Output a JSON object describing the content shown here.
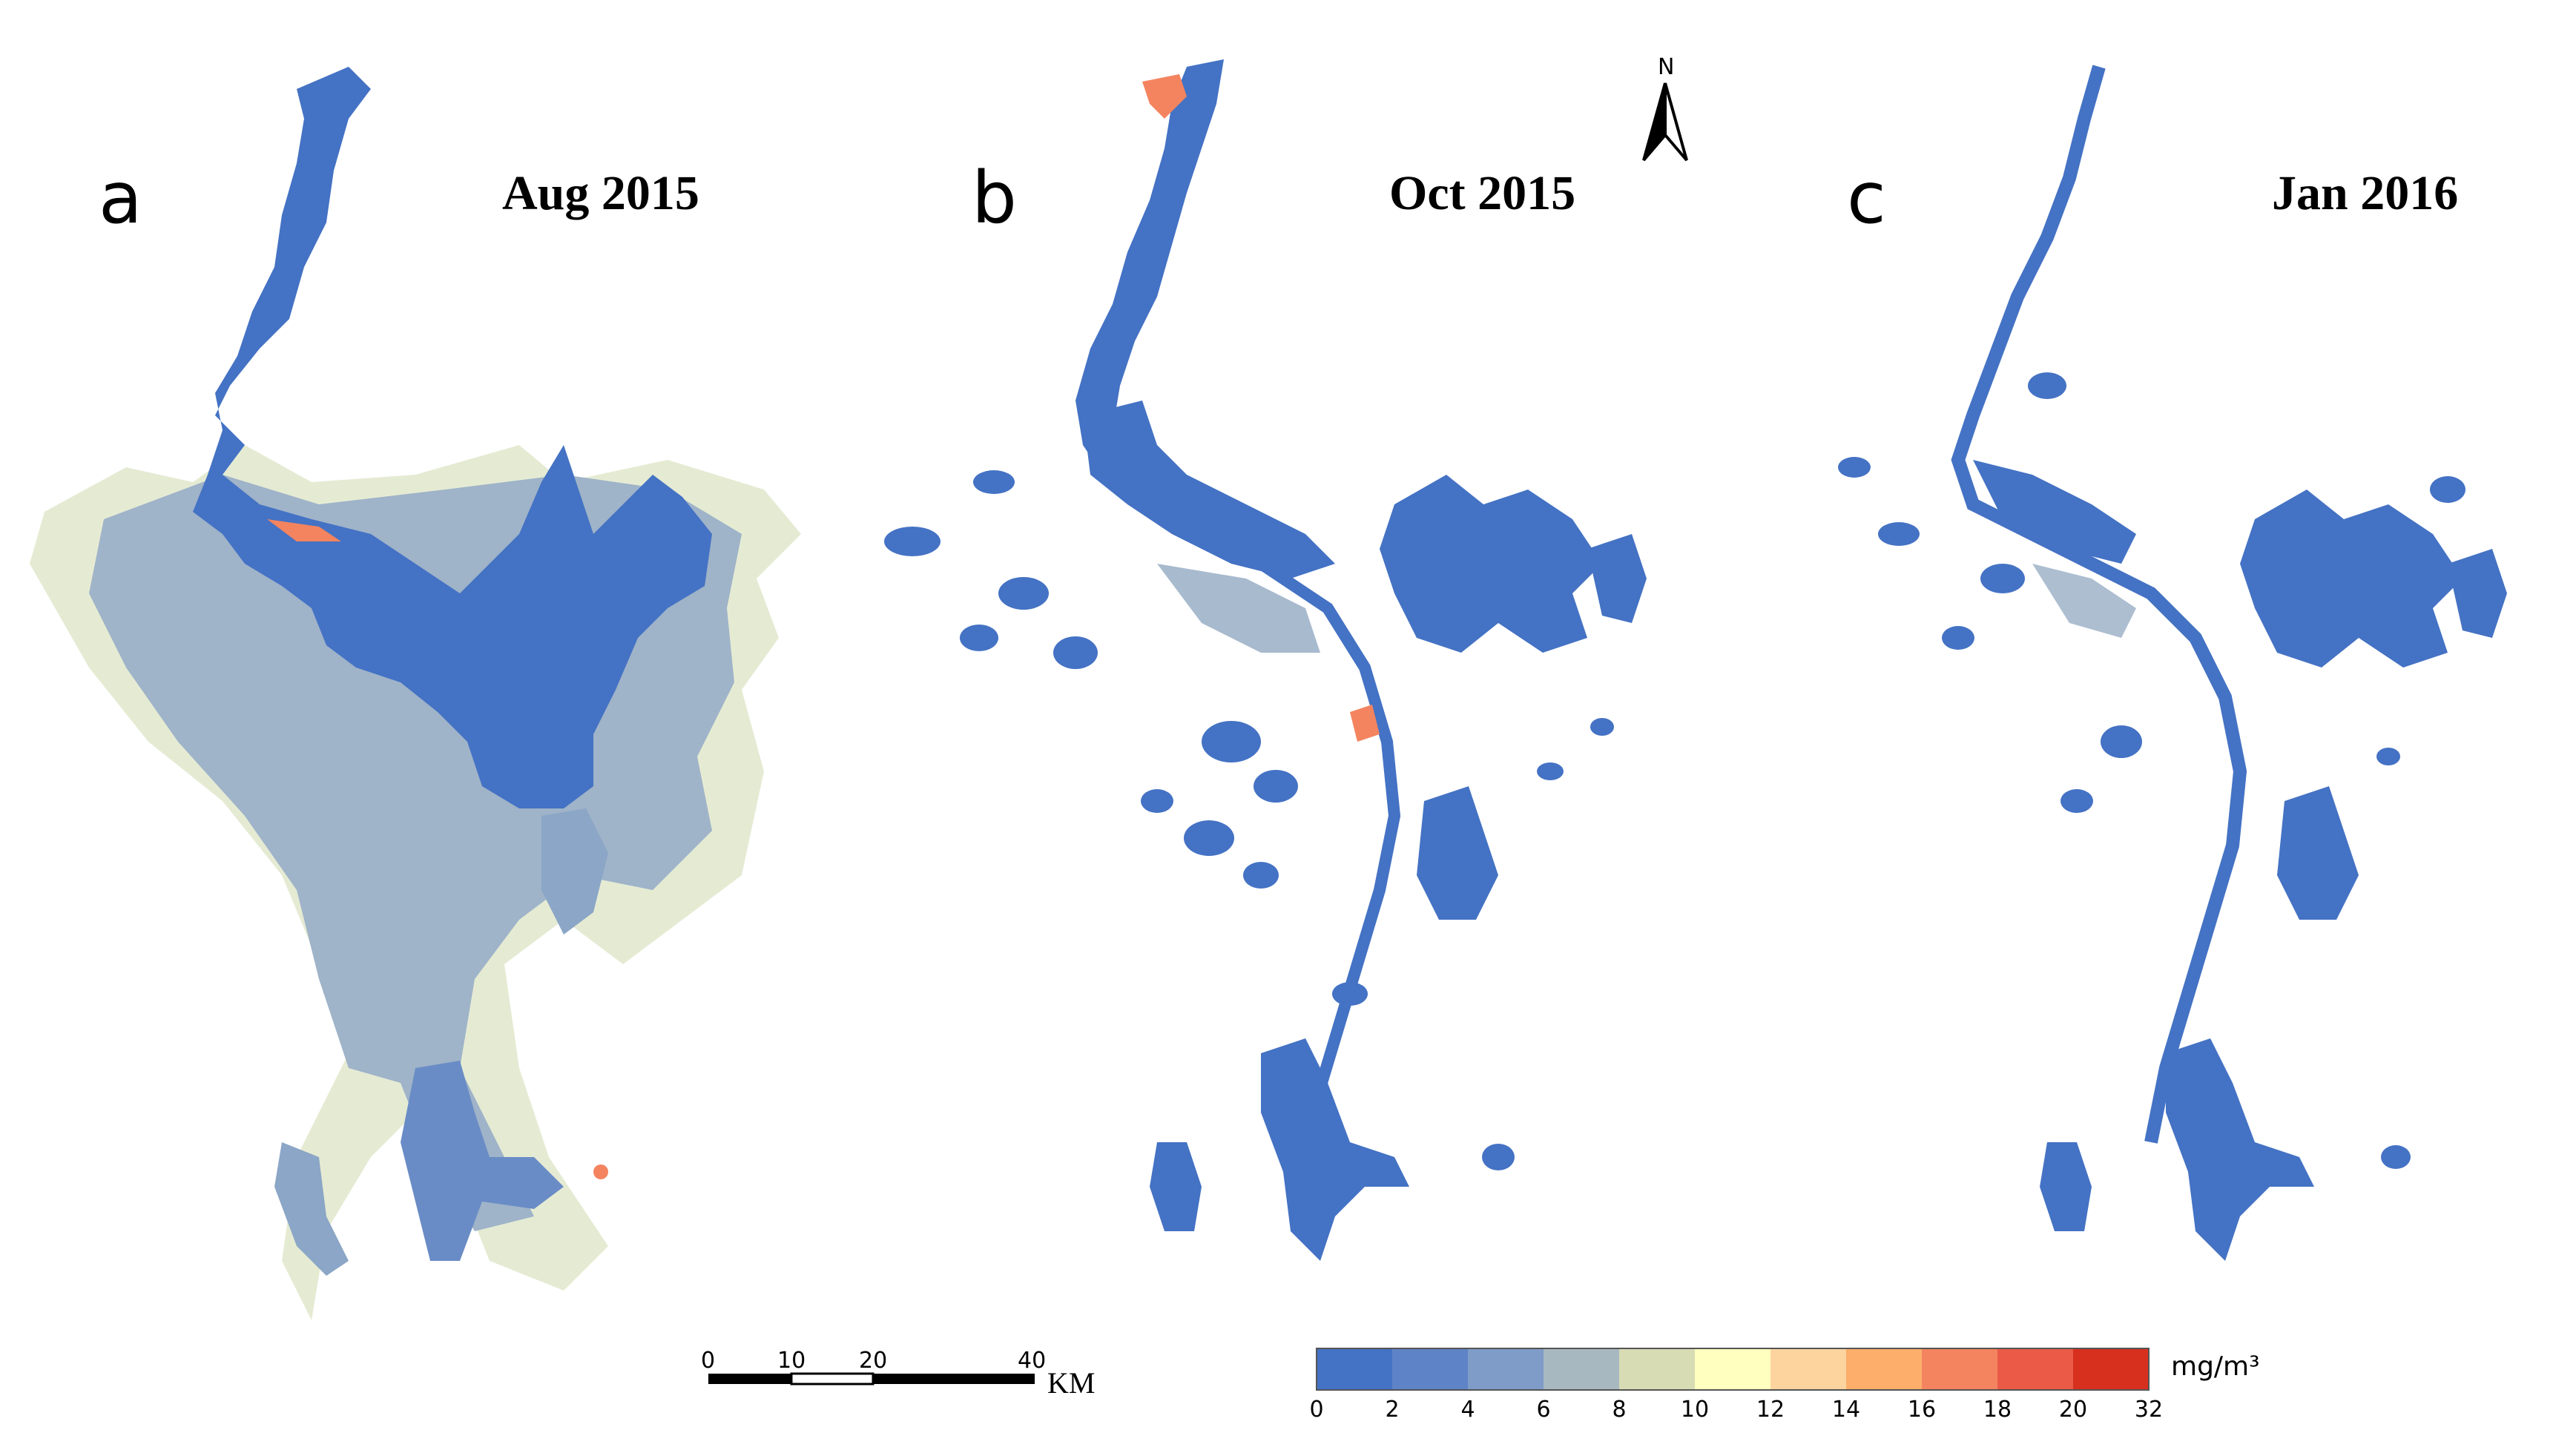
{
  "panels": [
    {
      "letter": "a",
      "date": "Aug 2015"
    },
    {
      "letter": "b",
      "date": "Oct 2015"
    },
    {
      "letter": "c",
      "date": "Jan 2016"
    }
  ],
  "north_arrow": {
    "label": "N"
  },
  "scale_bar": {
    "ticks": [
      "0",
      "10",
      "20",
      "40"
    ],
    "unit": "KM"
  },
  "legend": {
    "unit": "mg/m³",
    "breaks": [
      "0",
      "2",
      "4",
      "6",
      "8",
      "10",
      "12",
      "14",
      "16",
      "18",
      "20",
      "32"
    ],
    "colors": [
      "#4472c4",
      "#5e83c6",
      "#7f9cc8",
      "#a7b8c0",
      "#d7dcb4",
      "#ffffbf",
      "#fdd49e",
      "#fdae6b",
      "#f4845f",
      "#ea5a47",
      "#d7301f"
    ]
  },
  "map_colors": {
    "water_low": "#4472c4",
    "water_mid": "#7f9cc8",
    "water_grey": "#a7b8c0",
    "water_tan": "#d7dcb4",
    "hot_orange": "#f4845f"
  }
}
